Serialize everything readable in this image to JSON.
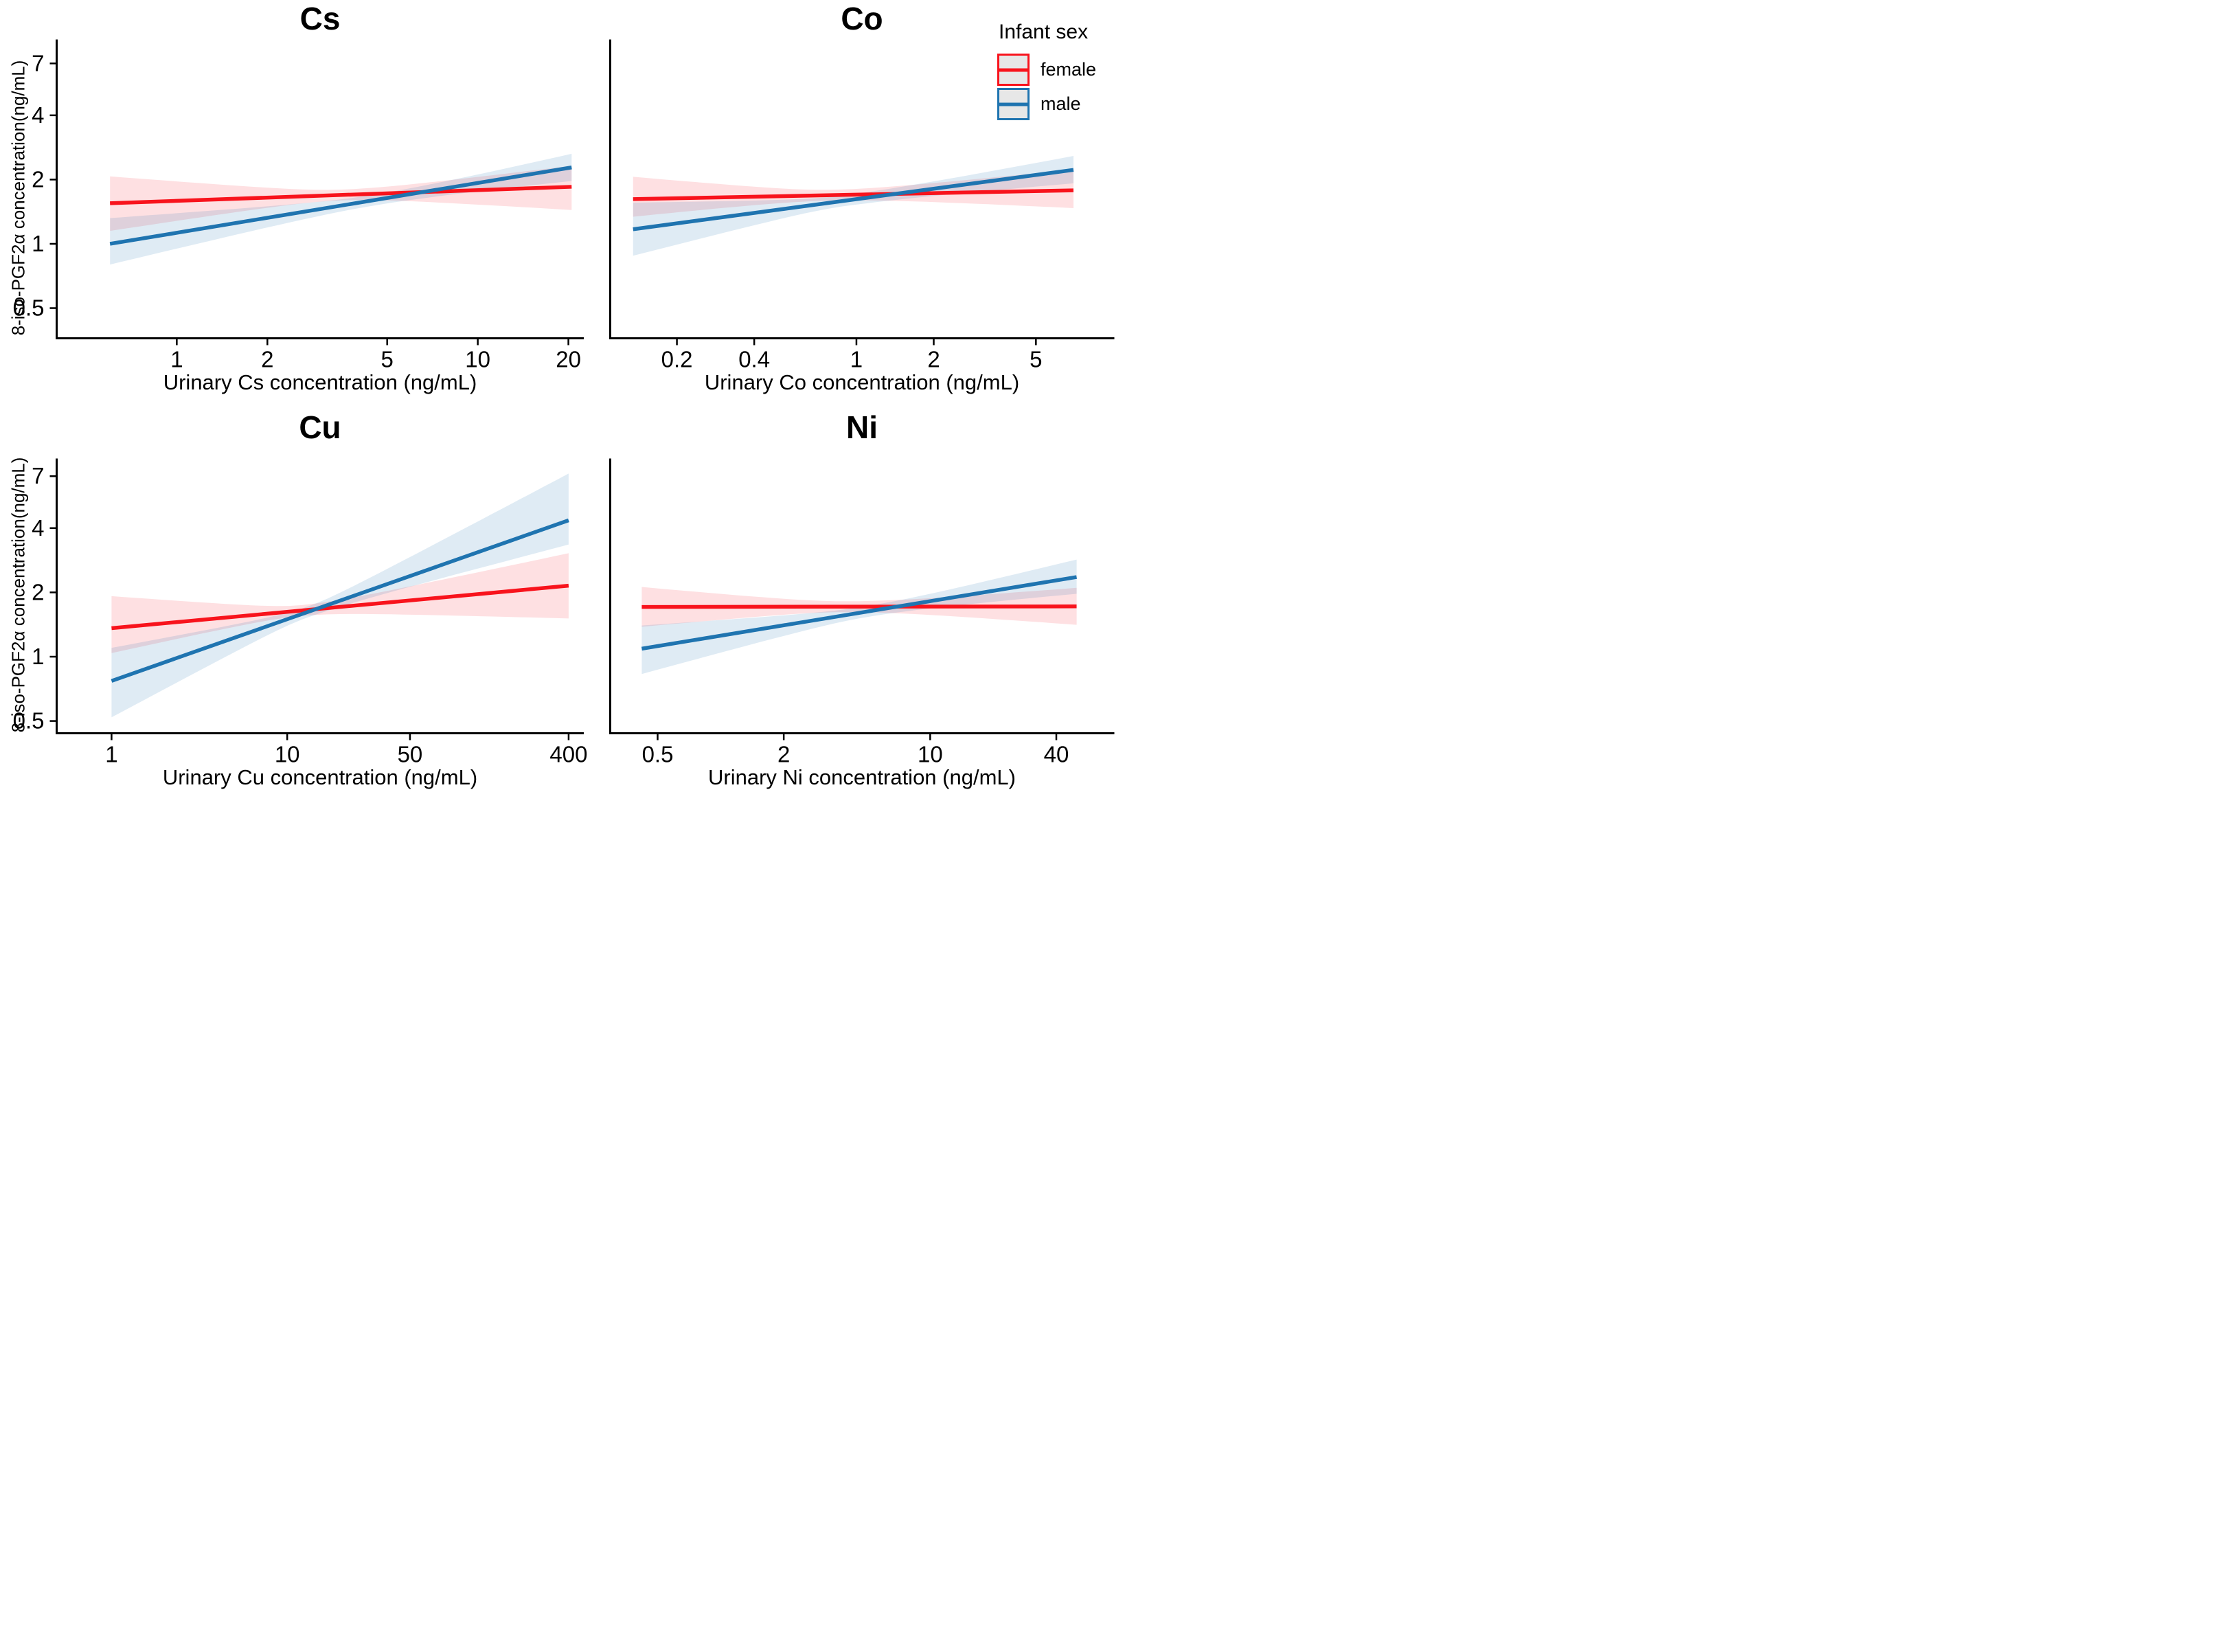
{
  "chart_data": {
    "type": "line",
    "description": "Four-panel log-log regression plot of urinary metal concentrations vs 8-iso-PGF2a concentration, with sex-specific fitted lines and confidence ribbons",
    "y_axis": {
      "label": "8-iso-PGF2α concentration(ng/mL)",
      "ticks": [
        "7",
        "4",
        "2",
        "1",
        "0.5"
      ],
      "tick_values": [
        7,
        4,
        2,
        1,
        0.5
      ],
      "scale": "log"
    },
    "legend": {
      "title": "Infant sex",
      "position": "top-right",
      "items": [
        {
          "label": "female",
          "color": "#f8131c"
        },
        {
          "label": "male",
          "color": "#1f74b0"
        }
      ]
    },
    "colors": {
      "female_line": "#f8131c",
      "male_line": "#1f74b0",
      "female_band_opacity": 0.13,
      "male_band_opacity": 0.14,
      "axis": "#000000"
    },
    "panels": [
      {
        "id": "cs",
        "title": "Cs",
        "x_label": "Urinary Cs concentration (ng/mL)",
        "x_ticks": [
          "1",
          "2",
          "5",
          "10",
          "20"
        ],
        "x_tick_values": [
          1,
          2,
          5,
          10,
          20
        ],
        "x_domain": [
          0.399,
          22.5
        ],
        "y_domain": [
          0.361,
          9.06
        ],
        "x_scale": "log",
        "series": [
          {
            "name": "female",
            "x": [
              0.6,
              20.5
            ],
            "y": [
              1.55,
              1.85
            ],
            "band": {
              "left": [
                1.15,
                2.07
              ],
              "right": [
                1.44,
                2.32
              ],
              "pinch_x": 3.5,
              "pinch_ratio": 1.06
            }
          },
          {
            "name": "male",
            "x": [
              0.6,
              20.5
            ],
            "y": [
              1.0,
              2.28
            ],
            "band": {
              "left": [
                0.8,
                1.32
              ],
              "right": [
                1.97,
                2.64
              ],
              "pinch_x": 4.5,
              "pinch_ratio": 1.06
            }
          }
        ]
      },
      {
        "id": "co",
        "title": "Co",
        "x_label": "Urinary Co concentration (ng/mL)",
        "x_ticks": [
          "0.2",
          "0.4",
          "1",
          "2",
          "5"
        ],
        "x_tick_values": [
          0.2,
          0.4,
          1,
          2,
          5
        ],
        "x_domain": [
          0.11,
          10.1
        ],
        "y_domain": [
          0.361,
          9.06
        ],
        "x_scale": "log",
        "series": [
          {
            "name": "female",
            "x": [
              0.135,
              7.0
            ],
            "y": [
              1.62,
              1.78
            ],
            "band": {
              "left": [
                1.34,
                2.06
              ],
              "right": [
                1.47,
                2.23
              ],
              "pinch_x": 0.8,
              "pinch_ratio": 1.06
            }
          },
          {
            "name": "male",
            "x": [
              0.135,
              7.0
            ],
            "y": [
              1.17,
              2.22
            ],
            "band": {
              "left": [
                0.88,
                1.56
              ],
              "right": [
                1.92,
                2.58
              ],
              "pinch_x": 0.9,
              "pinch_ratio": 1.06
            }
          }
        ]
      },
      {
        "id": "cu",
        "title": "Cu",
        "x_label": "Urinary Cu concentration (ng/mL)",
        "x_ticks": [
          "1",
          "10",
          "50",
          "400"
        ],
        "x_tick_values": [
          1,
          10,
          50,
          400
        ],
        "x_domain": [
          0.487,
          488
        ],
        "y_domain": [
          0.438,
          8.47
        ],
        "x_scale": "log",
        "series": [
          {
            "name": "female",
            "x": [
              1,
              400
            ],
            "y": [
              1.36,
              2.15
            ],
            "band": {
              "left": [
                1.04,
                1.92
              ],
              "right": [
                1.51,
                3.05
              ],
              "pinch_x": 12,
              "pinch_ratio": 1.06
            }
          },
          {
            "name": "male",
            "x": [
              1,
              400
            ],
            "y": [
              0.77,
              4.35
            ],
            "band": {
              "left": [
                0.52,
                1.1
              ],
              "right": [
                3.35,
                7.2
              ],
              "pinch_x": 13,
              "pinch_ratio": 1.06
            }
          }
        ]
      },
      {
        "id": "ni",
        "title": "Ni",
        "x_label": "Urinary Ni concentration (ng/mL)",
        "x_ticks": [
          "0.5",
          "2",
          "10",
          "40"
        ],
        "x_tick_values": [
          0.5,
          2,
          10,
          40
        ],
        "x_domain": [
          0.297,
          75.7
        ],
        "y_domain": [
          0.438,
          8.47
        ],
        "x_scale": "log",
        "series": [
          {
            "name": "female",
            "x": [
              0.42,
              50
            ],
            "y": [
              1.71,
              1.72
            ],
            "band": {
              "left": [
                1.38,
                2.12
              ],
              "right": [
                1.41,
                2.1
              ],
              "pinch_x": 4,
              "pinch_ratio": 1.06
            }
          },
          {
            "name": "male",
            "x": [
              0.42,
              50
            ],
            "y": [
              1.09,
              2.36
            ],
            "band": {
              "left": [
                0.83,
                1.4
              ],
              "right": [
                1.97,
                2.85
              ],
              "pinch_x": 5,
              "pinch_ratio": 1.06
            }
          }
        ]
      }
    ]
  }
}
